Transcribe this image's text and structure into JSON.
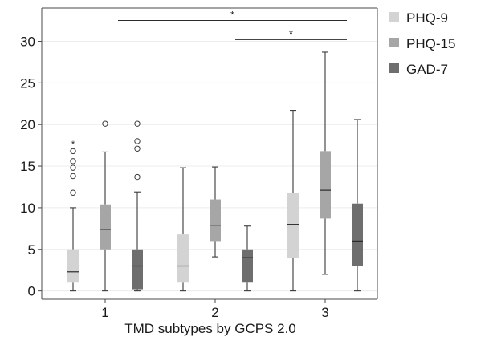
{
  "colors": {
    "PHQ-9": "#d3d3d3",
    "PHQ-15": "#a6a6a6",
    "GAD-7": "#6e6e6e",
    "whisker": "#3a3a3a",
    "median": "#2b2b2b",
    "grid": "#ececec",
    "frame": "#4a4a4a"
  },
  "chart_data": {
    "type": "box",
    "xlabel": "TMD subtypes by GCPS 2.0",
    "ylabel": "",
    "categories": [
      "1",
      "2",
      "3"
    ],
    "ylim": [
      -1,
      34
    ],
    "yticks": [
      0,
      5,
      10,
      15,
      20,
      25,
      30
    ],
    "grid": true,
    "legend_position": "top-right",
    "series": [
      {
        "name": "PHQ-9",
        "boxes": [
          {
            "min": 0,
            "q1": 1,
            "median": 2.3,
            "q3": 5,
            "max": 10,
            "outliers": [
              11.8,
              13.8,
              14.8,
              15.6,
              16.8
            ],
            "extremes": [
              17.7
            ]
          },
          {
            "min": 0,
            "q1": 1,
            "median": 3,
            "q3": 6.8,
            "max": 14.8,
            "outliers": [],
            "extremes": []
          },
          {
            "min": 0,
            "q1": 4,
            "median": 8,
            "q3": 11.8,
            "max": 21.7,
            "outliers": [],
            "extremes": []
          }
        ]
      },
      {
        "name": "PHQ-15",
        "boxes": [
          {
            "min": 0,
            "q1": 5,
            "median": 7.4,
            "q3": 10.4,
            "max": 16.7,
            "outliers": [
              20.1
            ],
            "extremes": []
          },
          {
            "min": 4.1,
            "q1": 6,
            "median": 7.9,
            "q3": 11,
            "max": 14.9,
            "outliers": [],
            "extremes": []
          },
          {
            "min": 2,
            "q1": 8.7,
            "median": 12.1,
            "q3": 16.8,
            "max": 28.7,
            "outliers": [],
            "extremes": []
          }
        ]
      },
      {
        "name": "GAD-7",
        "boxes": [
          {
            "min": 0,
            "q1": 0.2,
            "median": 3,
            "q3": 5,
            "max": 11.9,
            "outliers": [
              13.7,
              17.1,
              18,
              20.1
            ],
            "extremes": []
          },
          {
            "min": 0,
            "q1": 1,
            "median": 4,
            "q3": 5,
            "max": 7.8,
            "outliers": [],
            "extremes": []
          },
          {
            "min": 0,
            "q1": 3,
            "median": 6,
            "q3": 10.5,
            "max": 20.6,
            "outliers": [],
            "extremes": []
          }
        ]
      }
    ],
    "significance": [
      {
        "from": "1",
        "to": "3",
        "y": 32.5,
        "label": "*"
      },
      {
        "from": "2",
        "to": "3",
        "y": 30.2,
        "label": "*"
      }
    ]
  }
}
